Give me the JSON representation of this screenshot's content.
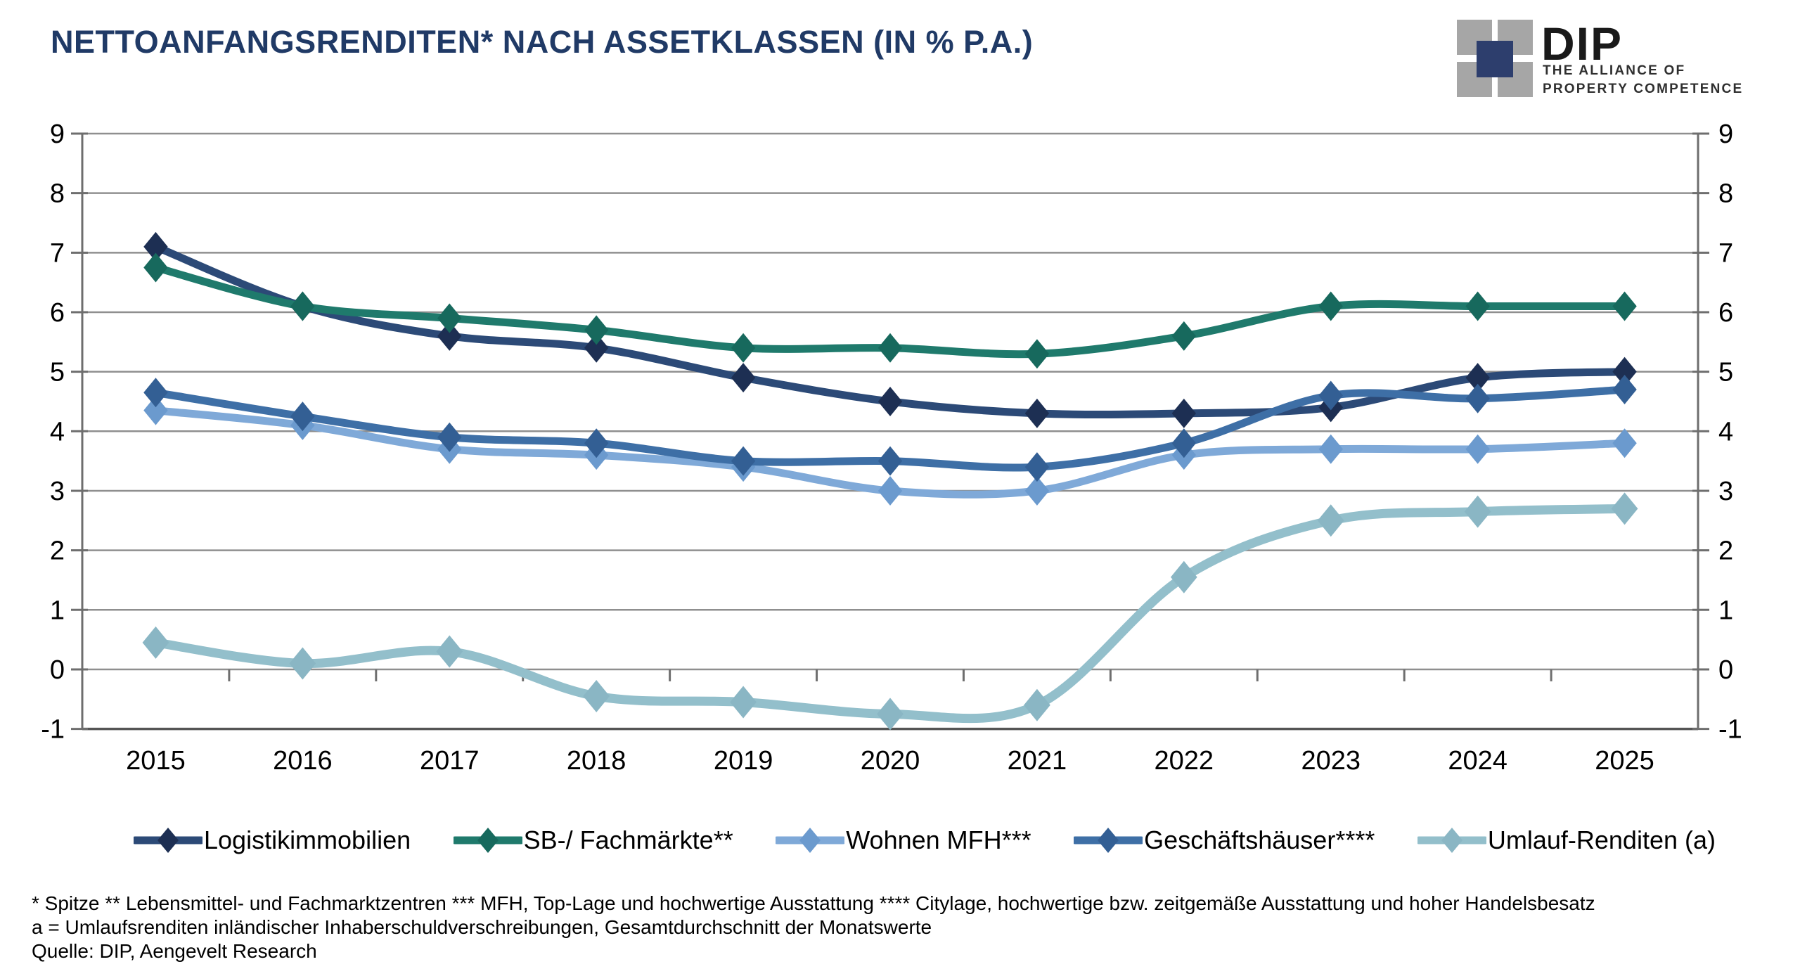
{
  "header": {
    "title": "NETTOANFANGSRENDITEN* NACH ASSETKLASSEN (IN % P.A.)"
  },
  "logo": {
    "brand": "DIP",
    "tagline_line1": "THE ALLIANCE OF",
    "tagline_line2": "PROPERTY COMPETENCE",
    "navy_square_color": "#2d3e6d",
    "gray_square_color": "#a6a6a6"
  },
  "chart_data": {
    "type": "line",
    "title": "NETTOANFANGSRENDITEN* NACH ASSETKLASSEN (IN % P.A.)",
    "categories": [
      "2015",
      "2016",
      "2017",
      "2018",
      "2019",
      "2020",
      "2021",
      "2022",
      "2023",
      "2024",
      "2025"
    ],
    "series": [
      {
        "name": "Logistikimmobilien",
        "color": "#2c4a77",
        "marker_color": "#1d2f53",
        "values": [
          7.1,
          6.1,
          5.6,
          5.4,
          4.9,
          4.5,
          4.3,
          4.3,
          4.4,
          4.9,
          5.0
        ]
      },
      {
        "name": "SB-/ Fachmärkte**",
        "color": "#1f7a6c",
        "marker_color": "#17695d",
        "values": [
          6.75,
          6.1,
          5.9,
          5.7,
          5.4,
          5.4,
          5.3,
          5.6,
          6.1,
          6.1,
          6.1
        ]
      },
      {
        "name": "Wohnen MFH***",
        "color": "#7fa9d8",
        "marker_color": "#6b9ace",
        "values": [
          4.35,
          4.1,
          3.7,
          3.6,
          3.4,
          3.0,
          3.0,
          3.6,
          3.7,
          3.7,
          3.8
        ]
      },
      {
        "name": "Geschäftshäuser****",
        "color": "#3e6fa6",
        "marker_color": "#335f94",
        "values": [
          4.65,
          4.25,
          3.9,
          3.8,
          3.5,
          3.5,
          3.4,
          3.8,
          4.6,
          4.55,
          4.7
        ]
      },
      {
        "name": "Umlauf-Renditen (a)",
        "color": "#93bfcb",
        "marker_color": "#8ab6c4",
        "values": [
          0.45,
          0.1,
          0.3,
          -0.45,
          -0.55,
          -0.75,
          -0.6,
          1.55,
          2.5,
          2.65,
          2.7
        ]
      }
    ],
    "ylim": [
      -1,
      9
    ],
    "ytick_step": 1,
    "y_axis_sides": "both",
    "xlabel": "",
    "ylabel": "",
    "grid": true,
    "smooth_lines": true,
    "legend_position": "bottom",
    "gridline_color": "#8f8f8f",
    "axis_color": "#6e6e6e"
  },
  "footnotes": {
    "line1": "* Spitze ** Lebensmittel- und Fachmarktzentren *** MFH, Top-Lage und hochwertige Ausstattung **** Citylage, hochwertige bzw. zeitgemäße Ausstattung und hoher Handelsbesatz",
    "line2": "a = Umlaufsrenditen inländischer Inhaberschuldverschreibungen, Gesamtdurchschnitt der Monatswerte",
    "line3": "Quelle: DIP, Aengevelt Research"
  }
}
